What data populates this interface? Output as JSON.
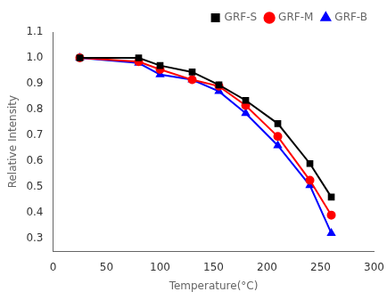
{
  "chart_data": {
    "type": "line",
    "x_label": "Temperature(°C)",
    "y_label": "Relative Intensity",
    "x": [
      25,
      80,
      100,
      130,
      155,
      180,
      210,
      240,
      260
    ],
    "series": [
      {
        "name": "GRF-S",
        "color": "#000000",
        "marker": "square",
        "line_style": "solid",
        "values": [
          1.0,
          1.0,
          0.97,
          0.945,
          0.895,
          0.835,
          0.745,
          0.59,
          0.46
        ]
      },
      {
        "name": "GRF-M",
        "color": "#ff0000",
        "marker": "circle",
        "line_style": "solid",
        "values": [
          1.0,
          0.985,
          0.955,
          0.915,
          0.89,
          0.815,
          0.695,
          0.525,
          0.39
        ]
      },
      {
        "name": "GRF-B",
        "color": "#0000ff",
        "marker": "triangle",
        "line_style": "solid",
        "values": [
          1.0,
          0.98,
          0.935,
          0.915,
          0.87,
          0.785,
          0.66,
          0.505,
          0.32
        ]
      }
    ],
    "xlim": [
      0,
      300
    ],
    "xticks": [
      0,
      50,
      100,
      150,
      200,
      250,
      300
    ],
    "ylim": [
      0.25,
      1.1
    ],
    "yticks": [
      0.3,
      0.4,
      0.5,
      0.6,
      0.7,
      0.8,
      0.9,
      {
        "value": 1.0,
        "label": "1.0"
      },
      1.1
    ],
    "legend": "upper right",
    "grid": false
  }
}
